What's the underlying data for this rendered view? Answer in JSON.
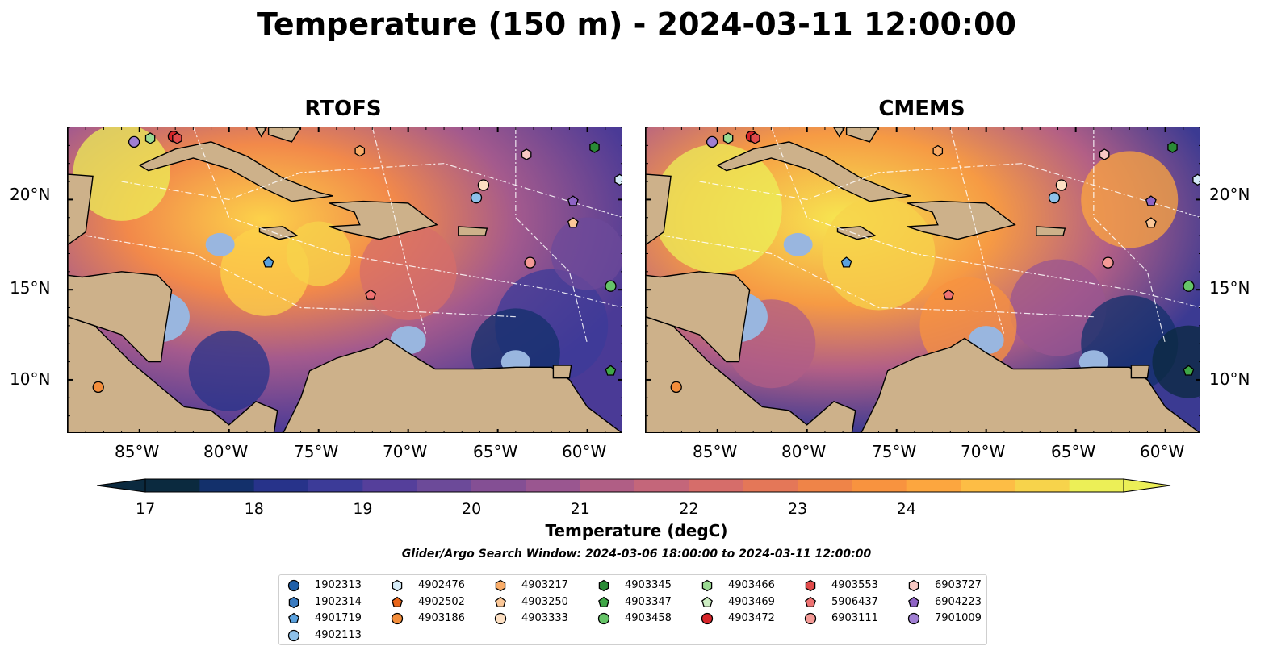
{
  "title": "Temperature (150 m) - 2024-03-11 12:00:00",
  "panels": [
    {
      "name": "RTOFS"
    },
    {
      "name": "CMEMS"
    }
  ],
  "axes": {
    "lon_ticks": [
      "85°W",
      "80°W",
      "75°W",
      "70°W",
      "65°W",
      "60°W"
    ],
    "lat_ticks": [
      "20°N",
      "15°N",
      "10°N"
    ],
    "lon_range": [
      -89,
      -58
    ],
    "lat_range": [
      7,
      24
    ]
  },
  "colorbar": {
    "label": "Temperature (degC)",
    "ticks": [
      "17",
      "18",
      "19",
      "20",
      "21",
      "22",
      "23",
      "24"
    ],
    "colors": [
      "#0b2a3f",
      "#13306b",
      "#27338a",
      "#3c3b98",
      "#553f9b",
      "#6c4a99",
      "#844f94",
      "#9a5690",
      "#b05e85",
      "#c4667a",
      "#d66d6a",
      "#e47758",
      "#ef8448",
      "#f8933f",
      "#fca63f",
      "#fdbd45",
      "#f7d34b",
      "#ecef57"
    ]
  },
  "search_window": "Glider/Argo Search Window: 2024-03-06 18:00:00 to 2024-03-11 12:00:00",
  "legend": [
    {
      "id": "1902313",
      "marker": "circle",
      "color": "#1f5fa8"
    },
    {
      "id": "1902314",
      "marker": "hexagon",
      "color": "#3a7bc0"
    },
    {
      "id": "4901719",
      "marker": "pentagon",
      "color": "#5aa1de"
    },
    {
      "id": "4902113",
      "marker": "circle",
      "color": "#8ec1ea"
    },
    {
      "id": "4902476",
      "marker": "hexagon",
      "color": "#d6ecf8"
    },
    {
      "id": "4902502",
      "marker": "pentagon",
      "color": "#e9661a"
    },
    {
      "id": "4903186",
      "marker": "circle",
      "color": "#f38d3b"
    },
    {
      "id": "4903217",
      "marker": "hexagon",
      "color": "#f9ac68"
    },
    {
      "id": "4903250",
      "marker": "pentagon",
      "color": "#fbc797"
    },
    {
      "id": "4903333",
      "marker": "circle",
      "color": "#fde0c3"
    },
    {
      "id": "4903345",
      "marker": "hexagon",
      "color": "#2a8a36"
    },
    {
      "id": "4903347",
      "marker": "pentagon",
      "color": "#3fa747"
    },
    {
      "id": "4903458",
      "marker": "circle",
      "color": "#66c468"
    },
    {
      "id": "4903466",
      "marker": "hexagon",
      "color": "#9bdb93"
    },
    {
      "id": "4903469",
      "marker": "pentagon",
      "color": "#cdeec3"
    },
    {
      "id": "4903472",
      "marker": "circle",
      "color": "#d7262a"
    },
    {
      "id": "4903553",
      "marker": "hexagon",
      "color": "#e04a4a"
    },
    {
      "id": "5906437",
      "marker": "pentagon",
      "color": "#ee7272"
    },
    {
      "id": "6903111",
      "marker": "circle",
      "color": "#f49a96"
    },
    {
      "id": "6903727",
      "marker": "hexagon",
      "color": "#f8c8c3"
    },
    {
      "id": "6904223",
      "marker": "pentagon",
      "color": "#8e63c4"
    },
    {
      "id": "7901009",
      "marker": "circle",
      "color": "#a07fd3"
    }
  ],
  "floats": [
    {
      "id": "7901009",
      "lon": -85.3,
      "lat": 23.2
    },
    {
      "id": "4903466",
      "lon": -84.4,
      "lat": 23.4
    },
    {
      "id": "4903472",
      "lon": -83.1,
      "lat": 23.5
    },
    {
      "id": "4903553",
      "lon": -82.9,
      "lat": 23.4
    },
    {
      "id": "4903217",
      "lon": -72.7,
      "lat": 22.7
    },
    {
      "id": "6903727",
      "lon": -63.4,
      "lat": 22.5
    },
    {
      "id": "4903345",
      "lon": -59.6,
      "lat": 22.9
    },
    {
      "id": "4902476",
      "lon": -58.2,
      "lat": 21.1
    },
    {
      "id": "4903333",
      "lon": -65.8,
      "lat": 20.8
    },
    {
      "id": "4902113",
      "lon": -66.2,
      "lat": 20.1
    },
    {
      "id": "6904223",
      "lon": -60.8,
      "lat": 19.9
    },
    {
      "id": "4903250",
      "lon": -60.8,
      "lat": 18.7
    },
    {
      "id": "4901719",
      "lon": -77.8,
      "lat": 16.5
    },
    {
      "id": "6903111",
      "lon": -63.2,
      "lat": 16.5
    },
    {
      "id": "5906437",
      "lon": -72.1,
      "lat": 14.7
    },
    {
      "id": "4903458",
      "lon": -58.7,
      "lat": 15.2
    },
    {
      "id": "4903347",
      "lon": -58.7,
      "lat": 10.5
    },
    {
      "id": "4903186",
      "lon": -87.3,
      "lat": 9.6
    }
  ]
}
